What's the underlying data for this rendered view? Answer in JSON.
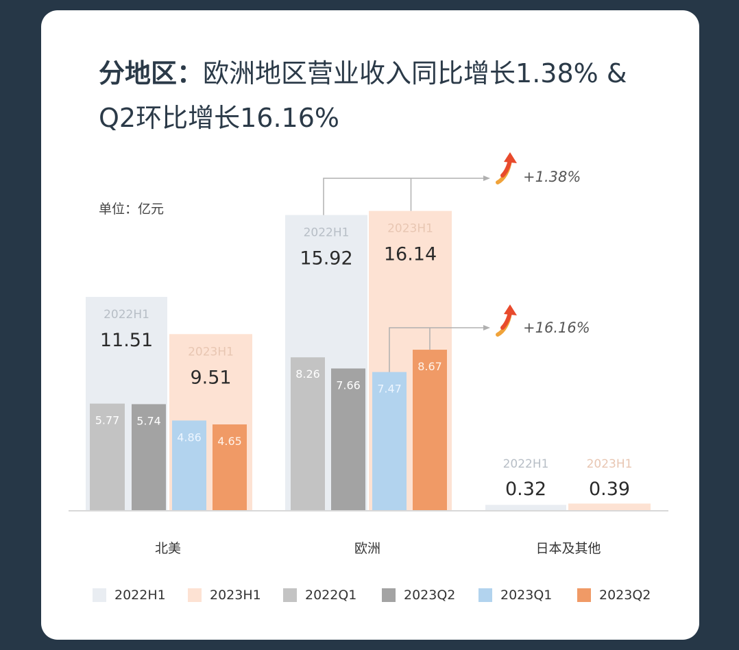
{
  "title": {
    "strong": "分地区：",
    "rest": "欧洲地区营业收入同比增长1.38% &",
    "line2": "Q2环比增长16.16%"
  },
  "unit_label": "单位：亿元",
  "colors": {
    "2022H1": "#e9edf2",
    "2023H1": "#fde2d3",
    "2022Q1": "#c3c3c3",
    "2023Q2_gray": "#a3a3a3",
    "2023Q1": "#b2d3ee",
    "2023Q2": "#f09a66",
    "arrow": "#e84a2c"
  },
  "chart_data": {
    "type": "bar",
    "categories": [
      "北美",
      "欧洲",
      "日本及其他"
    ],
    "ylim": [
      0,
      17
    ],
    "series": [
      {
        "name": "2022H1",
        "values": [
          11.51,
          15.92,
          0.32
        ],
        "labels": [
          "2022H1",
          "2022H1",
          "2022H1"
        ]
      },
      {
        "name": "2023H1",
        "values": [
          9.51,
          16.14,
          0.39
        ],
        "labels": [
          "2023H1",
          "2023H1",
          "2023H1"
        ]
      },
      {
        "name": "2022Q1",
        "values": [
          5.77,
          8.26,
          null
        ]
      },
      {
        "name": "2023Q2",
        "values": [
          5.74,
          7.66,
          null
        ]
      },
      {
        "name": "2023Q1",
        "values": [
          4.86,
          7.47,
          null
        ]
      },
      {
        "name": "2023Q2",
        "values": [
          4.65,
          8.67,
          null
        ]
      }
    ],
    "annotations": [
      {
        "text": "+1.38%"
      },
      {
        "text": "+16.16%"
      }
    ],
    "legend": [
      "2022H1",
      "2023H1",
      "2022Q1",
      "2023Q2",
      "2023Q1",
      "2023Q2"
    ],
    "grid": false,
    "legend_position": "bottom"
  }
}
